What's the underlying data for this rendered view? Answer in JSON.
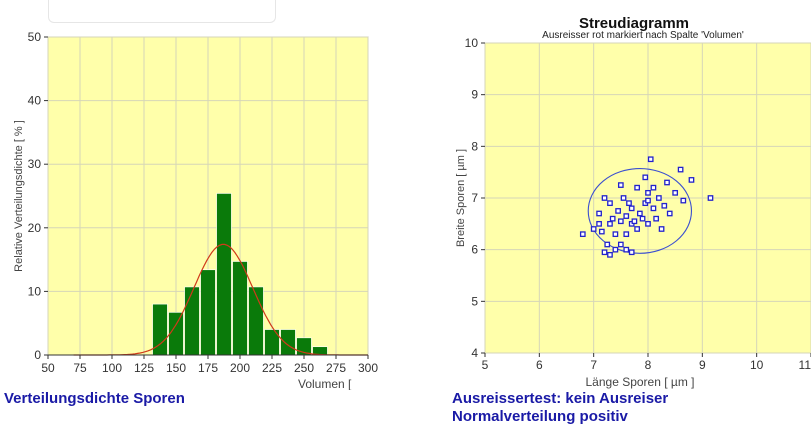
{
  "charts": [
    {
      "caption": "Verteilungsdichte Sporen",
      "chart_data": {
        "type": "bar",
        "title": "",
        "xlabel": "Volumen [",
        "ylabel": "Relative Verteilungsdichte [ % ]",
        "xlim": [
          50,
          300
        ],
        "ylim": [
          0,
          50
        ],
        "x_ticks": [
          "50",
          "75",
          "100",
          "125",
          "150",
          "175",
          "200",
          "225",
          "250",
          "275",
          "300"
        ],
        "y_ticks": [
          "0",
          "10",
          "20",
          "30",
          "40",
          "50"
        ],
        "bin_width": 12.5,
        "bins": [
          {
            "x": 137.5,
            "value": 8.0
          },
          {
            "x": 150.0,
            "value": 6.7
          },
          {
            "x": 162.5,
            "value": 10.7
          },
          {
            "x": 175.0,
            "value": 13.4
          },
          {
            "x": 187.5,
            "value": 25.4
          },
          {
            "x": 200.0,
            "value": 14.7
          },
          {
            "x": 212.5,
            "value": 10.7
          },
          {
            "x": 225.0,
            "value": 4.0
          },
          {
            "x": 237.5,
            "value": 4.0
          },
          {
            "x": 250.0,
            "value": 2.7
          },
          {
            "x": 262.5,
            "value": 1.3
          }
        ],
        "curve": {
          "type": "normal-fit",
          "mean": 187,
          "sd": 23,
          "peak": 17.4,
          "color": "#d03a1a"
        },
        "bar_color": "#0a7a0a",
        "background": "#ffffaa",
        "grid": true
      }
    },
    {
      "caption_lines": [
        "Ausreissertest: kein Ausreiser",
        "Normalverteilung positiv"
      ],
      "chart_data": {
        "type": "scatter",
        "title": "Streudiagramm",
        "subtitle": "Ausreisser rot markiert nach Spalte 'Volumen'",
        "xlabel": "Länge Sporen [ µm ]",
        "ylabel": "Breite Sporen [ µm ]",
        "xlim": [
          5,
          11
        ],
        "ylim": [
          4,
          10
        ],
        "x_ticks": [
          "5",
          "6",
          "7",
          "8",
          "9",
          "10",
          "11"
        ],
        "y_ticks": [
          "4",
          "5",
          "6",
          "7",
          "8",
          "9",
          "10"
        ],
        "marker_color": "#2222cc",
        "background": "#ffffaa",
        "grid": true,
        "ellipse": {
          "cx": 7.85,
          "cy": 6.75,
          "rx": 0.95,
          "ry": 0.82
        },
        "points": [
          [
            6.8,
            6.3
          ],
          [
            7.0,
            6.4
          ],
          [
            7.1,
            6.5
          ],
          [
            7.1,
            6.7
          ],
          [
            7.15,
            6.35
          ],
          [
            7.2,
            5.95
          ],
          [
            7.2,
            7.0
          ],
          [
            7.3,
            5.9
          ],
          [
            7.3,
            6.5
          ],
          [
            7.3,
            6.9
          ],
          [
            7.35,
            6.6
          ],
          [
            7.4,
            6.0
          ],
          [
            7.4,
            6.3
          ],
          [
            7.45,
            6.75
          ],
          [
            7.5,
            6.1
          ],
          [
            7.5,
            6.55
          ],
          [
            7.55,
            7.0
          ],
          [
            7.6,
            6.3
          ],
          [
            7.6,
            6.65
          ],
          [
            7.65,
            6.9
          ],
          [
            7.7,
            5.95
          ],
          [
            7.7,
            6.5
          ],
          [
            7.7,
            6.8
          ],
          [
            7.75,
            6.55
          ],
          [
            7.8,
            7.2
          ],
          [
            7.8,
            6.4
          ],
          [
            7.85,
            6.7
          ],
          [
            7.9,
            6.6
          ],
          [
            7.95,
            7.4
          ],
          [
            7.95,
            6.9
          ],
          [
            8.0,
            6.5
          ],
          [
            8.0,
            7.1
          ],
          [
            8.05,
            7.75
          ],
          [
            8.1,
            6.8
          ],
          [
            8.1,
            7.2
          ],
          [
            8.15,
            6.6
          ],
          [
            8.2,
            7.0
          ],
          [
            8.25,
            6.4
          ],
          [
            8.3,
            6.85
          ],
          [
            8.35,
            7.3
          ],
          [
            8.4,
            6.7
          ],
          [
            8.5,
            7.1
          ],
          [
            8.6,
            7.55
          ],
          [
            8.65,
            6.95
          ],
          [
            8.8,
            7.35
          ],
          [
            9.15,
            7.0
          ],
          [
            7.6,
            6.0
          ],
          [
            7.25,
            6.1
          ],
          [
            8.0,
            6.95
          ],
          [
            7.5,
            7.25
          ]
        ]
      }
    }
  ]
}
